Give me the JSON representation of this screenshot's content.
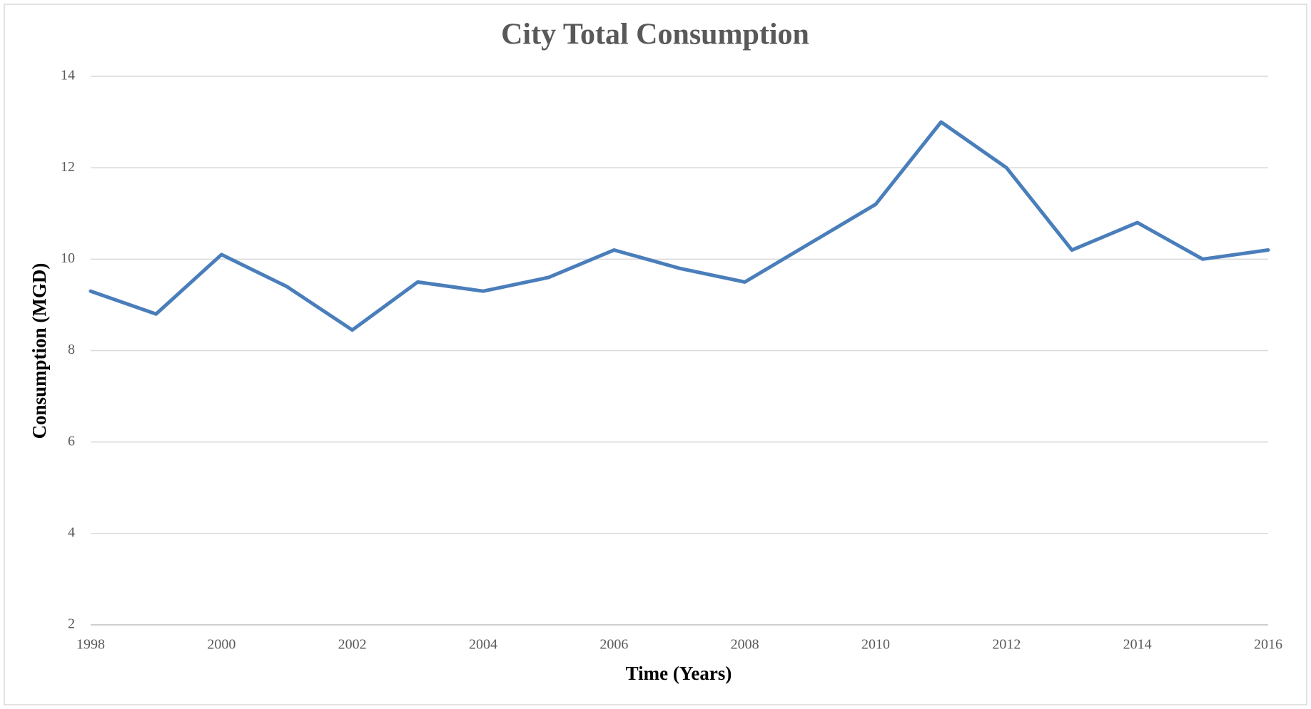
{
  "chart_data": {
    "type": "line",
    "title": "City Total Consumption",
    "x_label": "Time (Years)",
    "y_label": "Consumption (MGD)",
    "x": [
      1998,
      1999,
      2000,
      2001,
      2002,
      2003,
      2004,
      2005,
      2006,
      2007,
      2008,
      2009,
      2010,
      2011,
      2012,
      2013,
      2014,
      2015,
      2016
    ],
    "values": [
      9.3,
      8.8,
      10.1,
      9.4,
      8.45,
      9.5,
      9.3,
      9.6,
      10.2,
      9.8,
      9.5,
      10.35,
      11.2,
      13.0,
      12.0,
      10.2,
      10.8,
      10.0,
      10.2
    ],
    "color": "#4a7ebb",
    "xlim": [
      1998,
      2016
    ],
    "xticks": [
      1998,
      2000,
      2002,
      2004,
      2006,
      2008,
      2010,
      2012,
      2014,
      2016
    ],
    "ylim": [
      2,
      14
    ],
    "yticks": [
      2,
      4,
      6,
      8,
      10,
      12,
      14
    ],
    "grid": true
  }
}
